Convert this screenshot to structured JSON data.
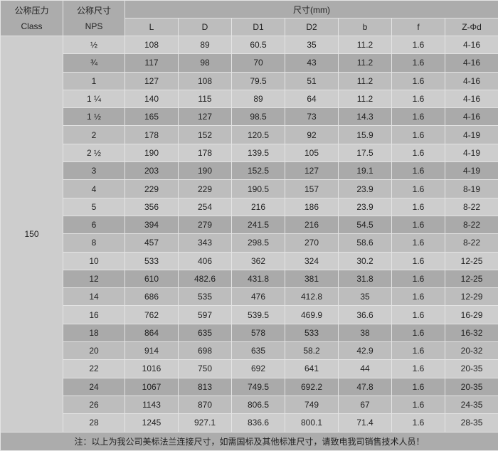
{
  "header": {
    "pressure_cn": "公称压力",
    "pressure_en": "Class",
    "size_cn": "公称尺寸",
    "size_en": "NPS",
    "dims_label": "尺寸(mm)",
    "columns": [
      "L",
      "D",
      "D1",
      "D2",
      "b",
      "f",
      "Z-Φd"
    ]
  },
  "class_value": "150",
  "rows": [
    [
      "½",
      "108",
      "89",
      "60.5",
      "35",
      "11.2",
      "1.6",
      "4-16"
    ],
    [
      "¾",
      "117",
      "98",
      "70",
      "43",
      "11.2",
      "1.6",
      "4-16"
    ],
    [
      "1",
      "127",
      "108",
      "79.5",
      "51",
      "11.2",
      "1.6",
      "4-16"
    ],
    [
      "1 ¼",
      "140",
      "115",
      "89",
      "64",
      "11.2",
      "1.6",
      "4-16"
    ],
    [
      "1 ½",
      "165",
      "127",
      "98.5",
      "73",
      "14.3",
      "1.6",
      "4-16"
    ],
    [
      "2",
      "178",
      "152",
      "120.5",
      "92",
      "15.9",
      "1.6",
      "4-19"
    ],
    [
      "2 ½",
      "190",
      "178",
      "139.5",
      "105",
      "17.5",
      "1.6",
      "4-19"
    ],
    [
      "3",
      "203",
      "190",
      "152.5",
      "127",
      "19.1",
      "1.6",
      "4-19"
    ],
    [
      "4",
      "229",
      "229",
      "190.5",
      "157",
      "23.9",
      "1.6",
      "8-19"
    ],
    [
      "5",
      "356",
      "254",
      "216",
      "186",
      "23.9",
      "1.6",
      "8-22"
    ],
    [
      "6",
      "394",
      "279",
      "241.5",
      "216",
      "54.5",
      "1.6",
      "8-22"
    ],
    [
      "8",
      "457",
      "343",
      "298.5",
      "270",
      "58.6",
      "1.6",
      "8-22"
    ],
    [
      "10",
      "533",
      "406",
      "362",
      "324",
      "30.2",
      "1.6",
      "12-25"
    ],
    [
      "12",
      "610",
      "482.6",
      "431.8",
      "381",
      "31.8",
      "1.6",
      "12-25"
    ],
    [
      "14",
      "686",
      "535",
      "476",
      "412.8",
      "35",
      "1.6",
      "12-29"
    ],
    [
      "16",
      "762",
      "597",
      "539.5",
      "469.9",
      "36.6",
      "1.6",
      "16-29"
    ],
    [
      "18",
      "864",
      "635",
      "578",
      "533",
      "38",
      "1.6",
      "16-32"
    ],
    [
      "20",
      "914",
      "698",
      "635",
      "58.2",
      "42.9",
      "1.6",
      "20-32"
    ],
    [
      "22",
      "1016",
      "750",
      "692",
      "641",
      "44",
      "1.6",
      "20-35"
    ],
    [
      "24",
      "1067",
      "813",
      "749.5",
      "692.2",
      "47.8",
      "1.6",
      "20-35"
    ],
    [
      "26",
      "1143",
      "870",
      "806.5",
      "749",
      "67",
      "1.6",
      "24-35"
    ],
    [
      "28",
      "1245",
      "927.1",
      "836.6",
      "800.1",
      "71.4",
      "1.6",
      "28-35"
    ]
  ],
  "footer_note": "注：以上为我公司美标法兰连接尺寸，如需国标及其他标准尺寸，请致电我司销售技术人员！",
  "colors": {
    "header": "#acacac",
    "row_light": "#cdcdcd",
    "row_dark": "#aaaaaa",
    "row_medium": "#bdbdbd",
    "border": "#e4e4e4"
  }
}
